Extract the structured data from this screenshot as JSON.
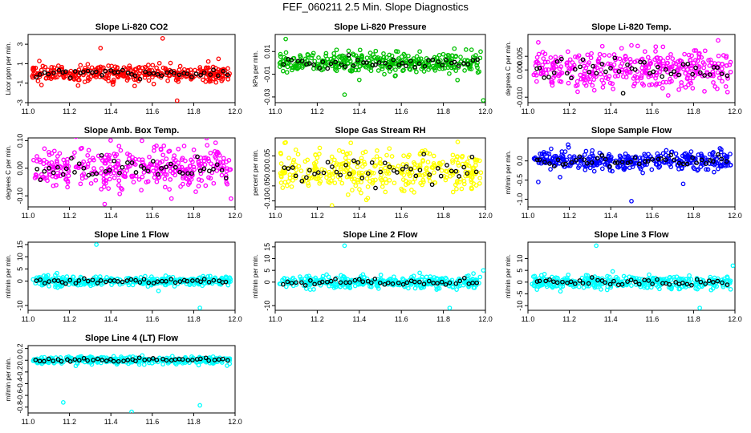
{
  "figure_title": "FEF_060211  2.5 Min. Slope Diagnostics",
  "chart_data": [
    {
      "type": "scatter",
      "title": "Slope Li-820 CO2",
      "xlabel": "",
      "ylabel": "Licor ppm per min.",
      "xlim": [
        11.0,
        12.0
      ],
      "xticks": [
        "11.0",
        "11.2",
        "11.4",
        "11.6",
        "11.8",
        "12.0"
      ],
      "ylim": [
        -3,
        4
      ],
      "yticks": [
        "-3",
        "-1",
        "1",
        "3"
      ],
      "color": "#ff0000",
      "outliers": [
        [
          11.65,
          3.6
        ],
        [
          11.72,
          -2.8
        ],
        [
          11.35,
          2.6
        ],
        [
          11.92,
          1.5
        ]
      ],
      "spread": 0.45
    },
    {
      "type": "scatter",
      "title": "Slope Li-820 Pressure",
      "xlabel": "",
      "ylabel": "kPa per min.",
      "xlim": [
        11.0,
        12.0
      ],
      "xticks": [
        "11.0",
        "11.2",
        "11.4",
        "11.6",
        "11.8",
        "12.0"
      ],
      "ylim": [
        -0.035,
        0.025
      ],
      "yticks": [
        "-0.03",
        "-0.01",
        "0.01"
      ],
      "color": "#00c000",
      "outliers": [
        [
          11.33,
          -0.028
        ],
        [
          11.05,
          0.021
        ],
        [
          11.99,
          -0.033
        ],
        [
          11.4,
          -0.015
        ]
      ],
      "spread": 0.0045
    },
    {
      "type": "scatter",
      "title": "Slope Li-820 Temp.",
      "xlabel": "",
      "ylabel": "degrees C per min.",
      "xlim": [
        11.0,
        12.0
      ],
      "xticks": [
        "11.0",
        "11.2",
        "11.4",
        "11.6",
        "11.8",
        "12.0"
      ],
      "ylim": [
        -0.012,
        0.013
      ],
      "yticks": [
        "-0.010",
        "0.000",
        "0.005"
      ],
      "color": "#ff00ff",
      "outliers": [
        [
          11.24,
          -0.008
        ],
        [
          11.5,
          0.009
        ]
      ],
      "spread": 0.0035
    },
    {
      "type": "scatter",
      "title": "Slope Amb. Box Temp.",
      "xlabel": "",
      "ylabel": "degrees C per min.",
      "xlim": [
        11.0,
        12.0
      ],
      "xticks": [
        "11.0",
        "11.2",
        "11.4",
        "11.6",
        "11.8",
        "12.0"
      ],
      "ylim": [
        -0.14,
        0.11
      ],
      "yticks": [
        "-0.10",
        "0.00",
        "0.10"
      ],
      "color": "#ff00ff",
      "outliers": [
        [
          11.37,
          -0.13
        ],
        [
          11.98,
          -0.11
        ],
        [
          11.55,
          0.1
        ],
        [
          11.81,
          -0.085
        ]
      ],
      "spread": 0.035
    },
    {
      "type": "scatter",
      "title": "Slope Gas Stream RH",
      "xlabel": "",
      "ylabel": "percent per min.",
      "xlim": [
        11.0,
        12.0
      ],
      "xticks": [
        "11.0",
        "11.2",
        "11.4",
        "11.6",
        "11.8",
        "12.0"
      ],
      "ylim": [
        -0.12,
        0.11
      ],
      "yticks": [
        "-0.10",
        "-0.05",
        "0.00",
        "0.05"
      ],
      "color": "#ffff00",
      "outliers": [
        [
          11.27,
          -0.115
        ],
        [
          11.05,
          0.095
        ]
      ],
      "spread": 0.035
    },
    {
      "type": "scatter",
      "title": "Slope Sample Flow",
      "xlabel": "",
      "ylabel": "ml/min per min.",
      "xlim": [
        11.0,
        12.0
      ],
      "xticks": [
        "11.0",
        "11.2",
        "11.4",
        "11.6",
        "11.8",
        "12.0"
      ],
      "ylim": [
        -1.2,
        0.6
      ],
      "yticks": [
        "-1.0",
        "-0.5",
        "0.0"
      ],
      "color": "#0000ff",
      "outliers": [
        [
          11.5,
          -1.05
        ],
        [
          11.75,
          -0.6
        ],
        [
          11.05,
          -0.55
        ]
      ],
      "spread": 0.12
    },
    {
      "type": "scatter",
      "title": "Slope Line 1 Flow",
      "xlabel": "",
      "ylabel": "ml/min per min.",
      "xlim": [
        11.0,
        12.0
      ],
      "xticks": [
        "11.0",
        "11.2",
        "11.4",
        "11.6",
        "11.8",
        "12.0"
      ],
      "ylim": [
        -12,
        16
      ],
      "yticks": [
        "-10",
        "0",
        "5",
        "10",
        "15"
      ],
      "color": "#00ffff",
      "outliers": [
        [
          11.33,
          15
        ],
        [
          11.83,
          -11
        ],
        [
          11.63,
          -4
        ]
      ],
      "spread": 0.9
    },
    {
      "type": "scatter",
      "title": "Slope Line 2 Flow",
      "xlabel": "",
      "ylabel": "ml/min per min.",
      "xlim": [
        11.0,
        12.0
      ],
      "xticks": [
        "11.0",
        "11.2",
        "11.4",
        "11.6",
        "11.8",
        "12.0"
      ],
      "ylim": [
        -12,
        17
      ],
      "yticks": [
        "-10",
        "0",
        "5",
        "10",
        "15"
      ],
      "color": "#00ffff",
      "outliers": [
        [
          11.33,
          15.5
        ],
        [
          11.83,
          -11
        ],
        [
          11.99,
          5
        ]
      ],
      "spread": 1.3
    },
    {
      "type": "scatter",
      "title": "Slope Line 3 Flow",
      "xlabel": "",
      "ylabel": "ml/min per min.",
      "xlim": [
        11.0,
        12.0
      ],
      "xticks": [
        "11.0",
        "11.2",
        "11.4",
        "11.6",
        "11.8",
        "12.0"
      ],
      "ylim": [
        -12,
        17
      ],
      "yticks": [
        "-10",
        "-5",
        "0",
        "5",
        "10"
      ],
      "color": "#00ffff",
      "outliers": [
        [
          11.33,
          15.5
        ],
        [
          11.83,
          -11
        ],
        [
          11.99,
          7
        ]
      ],
      "spread": 1.4
    },
    {
      "type": "scatter",
      "title": "Slope Line 4 (LT) Flow",
      "xlabel": "",
      "ylabel": "ml/min per min.",
      "xlim": [
        11.0,
        12.0
      ],
      "xticks": [
        "11.0",
        "11.2",
        "11.4",
        "11.6",
        "11.8",
        "12.0"
      ],
      "ylim": [
        -0.9,
        0.25
      ],
      "yticks": [
        "-0.8",
        "-0.6",
        "-0.4",
        "-0.2",
        "0.0",
        "0.2"
      ],
      "color": "#00ffff",
      "outliers": [
        [
          11.17,
          -0.72
        ],
        [
          11.83,
          -0.77
        ],
        [
          11.5,
          -0.88
        ]
      ],
      "spread": 0.03
    }
  ]
}
